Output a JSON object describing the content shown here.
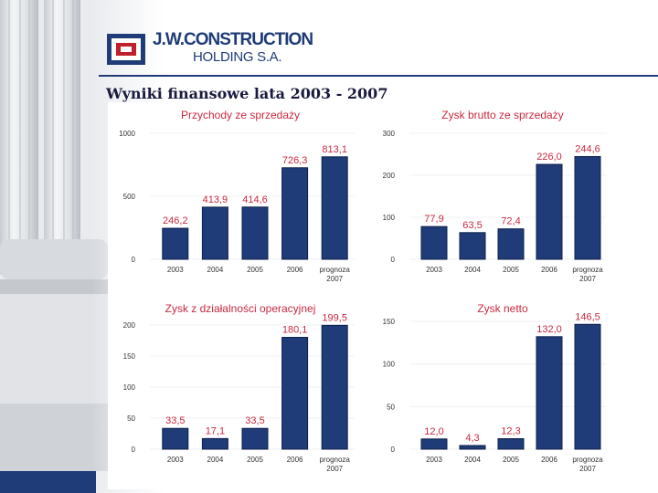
{
  "logo": {
    "name": "J.W.CONSTRUCTION",
    "sub": "HOLDING S.A.",
    "icon": "jw-logo-icon",
    "colors": {
      "blue": "#1f3c78",
      "red": "#c0202a"
    }
  },
  "slide": {
    "title": "Wyniki finansowe lata 2003 - 2007"
  },
  "colors": {
    "bar": "#1f3c78",
    "bar_edge": "#0d1f4a",
    "chart_title": "#c8293f",
    "data_label": "#c8293f",
    "header": "#1f3c78"
  },
  "chart_data": [
    {
      "type": "bar",
      "title": "Przychody ze sprzedaży",
      "categories": [
        "2003",
        "2004",
        "2005",
        "2006",
        "prognoza 2007"
      ],
      "values": [
        246.2,
        413.9,
        414.6,
        726.3,
        813.1
      ],
      "value_labels": [
        "246,2",
        "413,9",
        "414,6",
        "726,3",
        "813,1"
      ],
      "yticks": [
        "0",
        "500",
        "1000"
      ],
      "ylim": [
        0,
        1000
      ]
    },
    {
      "type": "bar",
      "title": "Zysk brutto ze sprzedaży",
      "categories": [
        "2003",
        "2004",
        "2005",
        "2006",
        "prognoza 2007"
      ],
      "values": [
        77.9,
        63.5,
        72.4,
        226.0,
        244.6
      ],
      "value_labels": [
        "77,9",
        "63,5",
        "72,4",
        "226,0",
        "244,6"
      ],
      "yticks": [
        "0",
        "100",
        "200",
        "300"
      ],
      "ylim": [
        0,
        300
      ]
    },
    {
      "type": "bar",
      "title": "Zysk z działalności operacyjnej",
      "categories": [
        "2003",
        "2004",
        "2005",
        "2006",
        "prognoza 2007"
      ],
      "values": [
        33.5,
        17.1,
        33.5,
        180.1,
        199.5
      ],
      "value_labels": [
        "33,5",
        "17,1",
        "33,5",
        "180,1",
        "199,5"
      ],
      "yticks": [
        "0",
        "50",
        "100",
        "150",
        "200"
      ],
      "ylim": [
        0,
        200
      ]
    },
    {
      "type": "bar",
      "title": "Zysk netto",
      "categories": [
        "2003",
        "2004",
        "2005",
        "2006",
        "prognoza 2007"
      ],
      "values": [
        12.0,
        4.3,
        12.3,
        132.0,
        146.5
      ],
      "value_labels": [
        "12,0",
        "4,3",
        "12,3",
        "132,0",
        "146,5"
      ],
      "yticks": [
        "0",
        "50",
        "100",
        "150"
      ],
      "ylim": [
        0,
        150
      ]
    }
  ]
}
